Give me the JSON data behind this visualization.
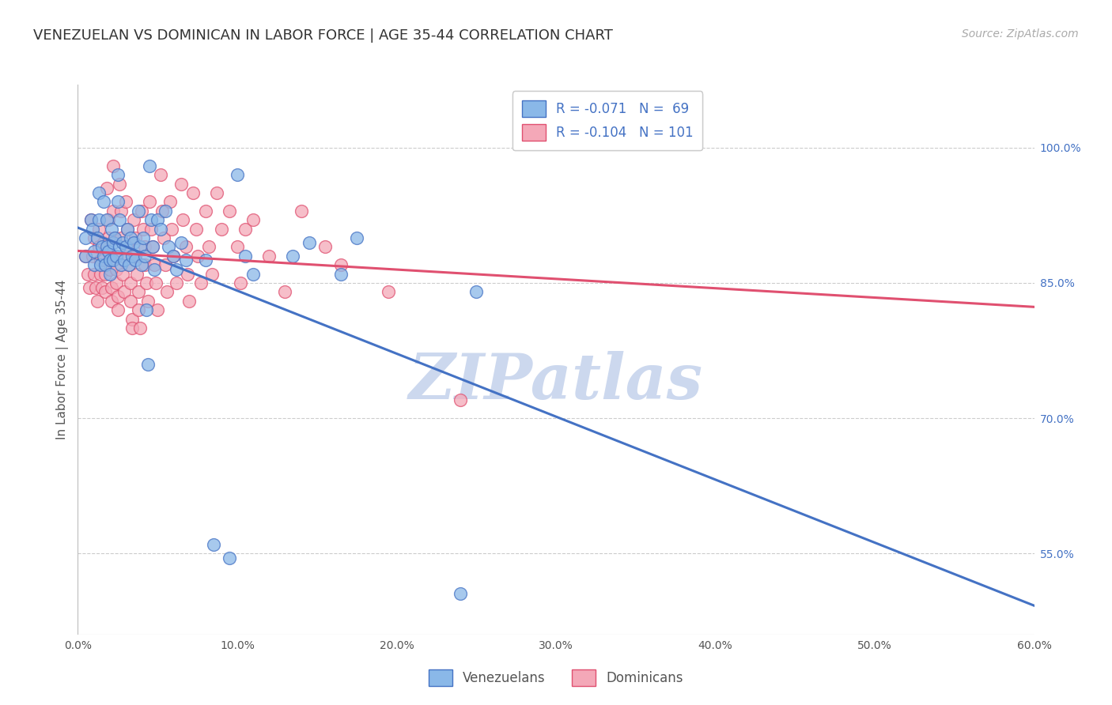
{
  "title": "VENEZUELAN VS DOMINICAN IN LABOR FORCE | AGE 35-44 CORRELATION CHART",
  "source": "Source: ZipAtlas.com",
  "ylabel_left": "In Labor Force | Age 35-44",
  "x_tick_labels": [
    "0.0%",
    "10.0%",
    "20.0%",
    "30.0%",
    "40.0%",
    "50.0%",
    "60.0%"
  ],
  "x_tick_vals": [
    0.0,
    0.1,
    0.2,
    0.3,
    0.4,
    0.5,
    0.6
  ],
  "y_tick_labels_right": [
    "100.0%",
    "85.0%",
    "70.0%",
    "55.0%"
  ],
  "y_tick_vals_right": [
    1.0,
    0.85,
    0.7,
    0.55
  ],
  "xlim": [
    0.0,
    0.6
  ],
  "ylim": [
    0.46,
    1.07
  ],
  "legend_entries": [
    {
      "label": "R = -0.071   N =  69",
      "color": "#7ab0e0"
    },
    {
      "label": "R = -0.104   N = 101",
      "color": "#f4a0b0"
    }
  ],
  "legend_title_blue": "Venezuelans",
  "legend_title_pink": "Dominicans",
  "venezuelan_scatter": [
    [
      0.005,
      0.88
    ],
    [
      0.005,
      0.9
    ],
    [
      0.008,
      0.92
    ],
    [
      0.009,
      0.91
    ],
    [
      0.01,
      0.885
    ],
    [
      0.01,
      0.87
    ],
    [
      0.012,
      0.9
    ],
    [
      0.013,
      0.95
    ],
    [
      0.013,
      0.92
    ],
    [
      0.014,
      0.87
    ],
    [
      0.015,
      0.89
    ],
    [
      0.016,
      0.88
    ],
    [
      0.016,
      0.94
    ],
    [
      0.017,
      0.87
    ],
    [
      0.018,
      0.92
    ],
    [
      0.018,
      0.89
    ],
    [
      0.019,
      0.885
    ],
    [
      0.02,
      0.86
    ],
    [
      0.02,
      0.875
    ],
    [
      0.021,
      0.91
    ],
    [
      0.022,
      0.895
    ],
    [
      0.022,
      0.875
    ],
    [
      0.023,
      0.9
    ],
    [
      0.024,
      0.88
    ],
    [
      0.025,
      0.97
    ],
    [
      0.025,
      0.94
    ],
    [
      0.026,
      0.92
    ],
    [
      0.026,
      0.89
    ],
    [
      0.027,
      0.87
    ],
    [
      0.028,
      0.895
    ],
    [
      0.029,
      0.875
    ],
    [
      0.03,
      0.89
    ],
    [
      0.031,
      0.91
    ],
    [
      0.032,
      0.87
    ],
    [
      0.033,
      0.9
    ],
    [
      0.034,
      0.88
    ],
    [
      0.035,
      0.895
    ],
    [
      0.036,
      0.875
    ],
    [
      0.038,
      0.93
    ],
    [
      0.039,
      0.89
    ],
    [
      0.04,
      0.87
    ],
    [
      0.041,
      0.9
    ],
    [
      0.042,
      0.88
    ],
    [
      0.043,
      0.82
    ],
    [
      0.044,
      0.76
    ],
    [
      0.045,
      0.98
    ],
    [
      0.046,
      0.92
    ],
    [
      0.047,
      0.89
    ],
    [
      0.048,
      0.865
    ],
    [
      0.05,
      0.92
    ],
    [
      0.052,
      0.91
    ],
    [
      0.055,
      0.93
    ],
    [
      0.057,
      0.89
    ],
    [
      0.06,
      0.88
    ],
    [
      0.062,
      0.865
    ],
    [
      0.065,
      0.895
    ],
    [
      0.068,
      0.875
    ],
    [
      0.08,
      0.875
    ],
    [
      0.085,
      0.56
    ],
    [
      0.095,
      0.545
    ],
    [
      0.1,
      0.97
    ],
    [
      0.105,
      0.88
    ],
    [
      0.11,
      0.86
    ],
    [
      0.135,
      0.88
    ],
    [
      0.145,
      0.895
    ],
    [
      0.165,
      0.86
    ],
    [
      0.175,
      0.9
    ],
    [
      0.24,
      0.505
    ],
    [
      0.25,
      0.84
    ]
  ],
  "dominican_scatter": [
    [
      0.005,
      0.88
    ],
    [
      0.006,
      0.86
    ],
    [
      0.007,
      0.845
    ],
    [
      0.008,
      0.92
    ],
    [
      0.009,
      0.88
    ],
    [
      0.01,
      0.9
    ],
    [
      0.01,
      0.86
    ],
    [
      0.011,
      0.845
    ],
    [
      0.012,
      0.83
    ],
    [
      0.013,
      0.91
    ],
    [
      0.013,
      0.89
    ],
    [
      0.014,
      0.875
    ],
    [
      0.014,
      0.86
    ],
    [
      0.015,
      0.845
    ],
    [
      0.016,
      0.895
    ],
    [
      0.016,
      0.875
    ],
    [
      0.017,
      0.86
    ],
    [
      0.017,
      0.84
    ],
    [
      0.018,
      0.955
    ],
    [
      0.019,
      0.92
    ],
    [
      0.019,
      0.9
    ],
    [
      0.02,
      0.88
    ],
    [
      0.02,
      0.865
    ],
    [
      0.021,
      0.845
    ],
    [
      0.021,
      0.83
    ],
    [
      0.022,
      0.98
    ],
    [
      0.022,
      0.93
    ],
    [
      0.023,
      0.9
    ],
    [
      0.023,
      0.88
    ],
    [
      0.024,
      0.865
    ],
    [
      0.024,
      0.85
    ],
    [
      0.025,
      0.835
    ],
    [
      0.025,
      0.82
    ],
    [
      0.026,
      0.96
    ],
    [
      0.027,
      0.93
    ],
    [
      0.027,
      0.9
    ],
    [
      0.028,
      0.88
    ],
    [
      0.028,
      0.86
    ],
    [
      0.029,
      0.84
    ],
    [
      0.03,
      0.94
    ],
    [
      0.031,
      0.91
    ],
    [
      0.031,
      0.89
    ],
    [
      0.032,
      0.87
    ],
    [
      0.033,
      0.85
    ],
    [
      0.033,
      0.83
    ],
    [
      0.034,
      0.81
    ],
    [
      0.034,
      0.8
    ],
    [
      0.035,
      0.92
    ],
    [
      0.036,
      0.9
    ],
    [
      0.036,
      0.88
    ],
    [
      0.037,
      0.86
    ],
    [
      0.038,
      0.84
    ],
    [
      0.038,
      0.82
    ],
    [
      0.039,
      0.8
    ],
    [
      0.04,
      0.93
    ],
    [
      0.041,
      0.91
    ],
    [
      0.042,
      0.89
    ],
    [
      0.042,
      0.87
    ],
    [
      0.043,
      0.85
    ],
    [
      0.044,
      0.83
    ],
    [
      0.045,
      0.94
    ],
    [
      0.046,
      0.91
    ],
    [
      0.047,
      0.89
    ],
    [
      0.048,
      0.87
    ],
    [
      0.049,
      0.85
    ],
    [
      0.05,
      0.82
    ],
    [
      0.052,
      0.97
    ],
    [
      0.053,
      0.93
    ],
    [
      0.054,
      0.9
    ],
    [
      0.055,
      0.87
    ],
    [
      0.056,
      0.84
    ],
    [
      0.058,
      0.94
    ],
    [
      0.059,
      0.91
    ],
    [
      0.06,
      0.88
    ],
    [
      0.062,
      0.85
    ],
    [
      0.065,
      0.96
    ],
    [
      0.066,
      0.92
    ],
    [
      0.068,
      0.89
    ],
    [
      0.069,
      0.86
    ],
    [
      0.07,
      0.83
    ],
    [
      0.072,
      0.95
    ],
    [
      0.074,
      0.91
    ],
    [
      0.075,
      0.88
    ],
    [
      0.077,
      0.85
    ],
    [
      0.08,
      0.93
    ],
    [
      0.082,
      0.89
    ],
    [
      0.084,
      0.86
    ],
    [
      0.087,
      0.95
    ],
    [
      0.09,
      0.91
    ],
    [
      0.095,
      0.93
    ],
    [
      0.1,
      0.89
    ],
    [
      0.102,
      0.85
    ],
    [
      0.105,
      0.91
    ],
    [
      0.11,
      0.92
    ],
    [
      0.12,
      0.88
    ],
    [
      0.13,
      0.84
    ],
    [
      0.14,
      0.93
    ],
    [
      0.155,
      0.89
    ],
    [
      0.165,
      0.87
    ],
    [
      0.195,
      0.84
    ],
    [
      0.24,
      0.72
    ]
  ],
  "blue_line_color": "#4472c4",
  "pink_line_color": "#e05070",
  "scatter_blue_color": "#8ab8e8",
  "scatter_pink_color": "#f4a8b8",
  "grid_color": "#cccccc",
  "watermark_text": "ZIPatlas",
  "watermark_color": "#ccd8ee",
  "background_color": "#ffffff",
  "title_fontsize": 13,
  "axis_label_fontsize": 11,
  "tick_fontsize": 10,
  "legend_fontsize": 12,
  "source_fontsize": 10
}
